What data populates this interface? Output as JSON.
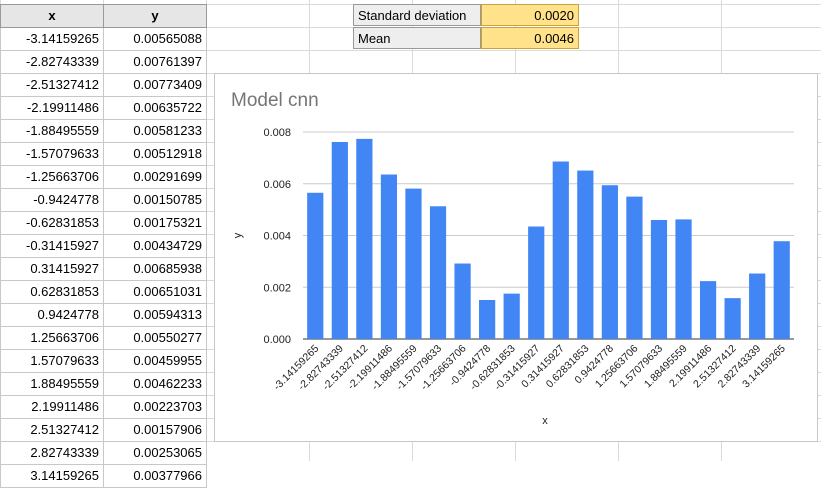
{
  "sheet": {
    "headers": {
      "x": "x",
      "y": "y"
    },
    "rows": [
      [
        "-3.14159265",
        "0.00565088"
      ],
      [
        "-2.82743339",
        "0.00761397"
      ],
      [
        "-2.51327412",
        "0.00773409"
      ],
      [
        "-2.19911486",
        "0.00635722"
      ],
      [
        "-1.88495559",
        "0.00581233"
      ],
      [
        "-1.57079633",
        "0.00512918"
      ],
      [
        "-1.25663706",
        "0.00291699"
      ],
      [
        "-0.9424778",
        "0.00150785"
      ],
      [
        "-0.62831853",
        "0.00175321"
      ],
      [
        "-0.31415927",
        "0.00434729"
      ],
      [
        "0.31415927",
        "0.00685938"
      ],
      [
        "0.62831853",
        "0.00651031"
      ],
      [
        "0.9424778",
        "0.00594313"
      ],
      [
        "1.25663706",
        "0.00550277"
      ],
      [
        "1.57079633",
        "0.00459955"
      ],
      [
        "1.88495559",
        "0.00462233"
      ],
      [
        "2.19911486",
        "0.00223703"
      ],
      [
        "2.51327412",
        "0.00157906"
      ],
      [
        "2.82743339",
        "0.00253065"
      ],
      [
        "3.14159265",
        "0.00377966"
      ]
    ]
  },
  "stats": {
    "std_label": "Standard deviation",
    "std_value": "0.0020",
    "mean_label": "Mean",
    "mean_value": "0.0046"
  },
  "colors": {
    "bar": "#4285f4",
    "stat_highlight": "#ffe28a"
  },
  "chart_data": {
    "type": "bar",
    "title": "Model cnn",
    "xlabel": "x",
    "ylabel": "y",
    "ylim": [
      0,
      0.008
    ],
    "yticks": [
      "0.000",
      "0.002",
      "0.004",
      "0.006",
      "0.008"
    ],
    "grid": true,
    "categories": [
      "-3.14159265",
      "-2.82743339",
      "-2.51327412",
      "-2.19911486",
      "-1.88495559",
      "-1.57079633",
      "-1.25663706",
      "-0.9424778",
      "-0.62831853",
      "-0.31415927",
      "0.31415927",
      "0.62831853",
      "0.9424778",
      "1.25663706",
      "1.57079633",
      "1.88495559",
      "2.19911486",
      "2.51327412",
      "2.82743339",
      "3.14159265"
    ],
    "values": [
      0.00565088,
      0.00761397,
      0.00773409,
      0.00635722,
      0.00581233,
      0.00512918,
      0.00291699,
      0.00150785,
      0.00175321,
      0.00434729,
      0.00685938,
      0.00651031,
      0.00594313,
      0.00550277,
      0.00459955,
      0.00462233,
      0.00223703,
      0.00157906,
      0.00253065,
      0.00377966
    ]
  }
}
